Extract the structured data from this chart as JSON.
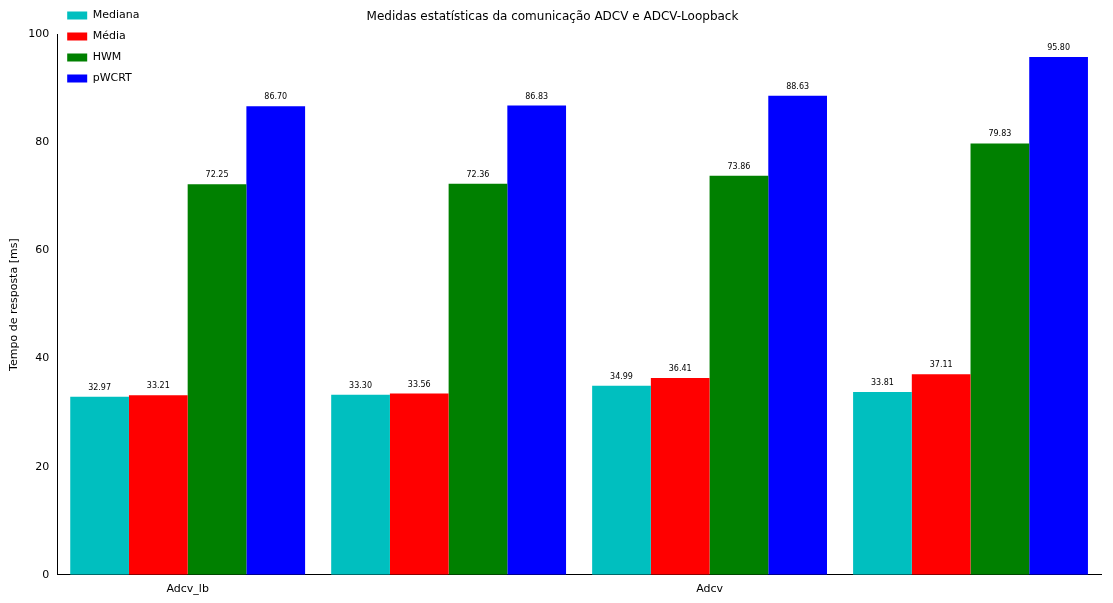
{
  "chart_data": {
    "type": "bar",
    "title": "Medidas estatísticas da comunicação ADCV e ADCV-Loopback",
    "ylabel": "Tempo de resposta [ms]",
    "categories": [
      "Adcv_lb",
      null,
      "Adcv",
      null
    ],
    "series": [
      {
        "name": "Mediana",
        "color": "#00bfbf",
        "values": [
          32.97,
          33.3,
          34.99,
          33.81
        ],
        "value_labels": [
          "32.97",
          "33.30",
          "34.99",
          "33.81"
        ]
      },
      {
        "name": "Média",
        "color": "#ff0000",
        "values": [
          33.21,
          33.56,
          36.41,
          37.11
        ],
        "value_labels": [
          "33.21",
          "33.56",
          "36.41",
          "37.11"
        ]
      },
      {
        "name": "HWM",
        "color": "#008000",
        "values": [
          72.25,
          72.36,
          73.86,
          79.83
        ],
        "value_labels": [
          "72.25",
          "72.36",
          "73.86",
          "79.83"
        ]
      },
      {
        "name": "pWCRT",
        "color": "#0000ff",
        "values": [
          86.7,
          86.83,
          88.63,
          95.8
        ],
        "value_labels": [
          "86.70",
          "86.83",
          "88.63",
          "95.80"
        ]
      }
    ],
    "ylim": [
      0,
      100
    ],
    "yticks": [
      0,
      20,
      40,
      60,
      80,
      100
    ],
    "grid": false,
    "legend": "top left"
  }
}
